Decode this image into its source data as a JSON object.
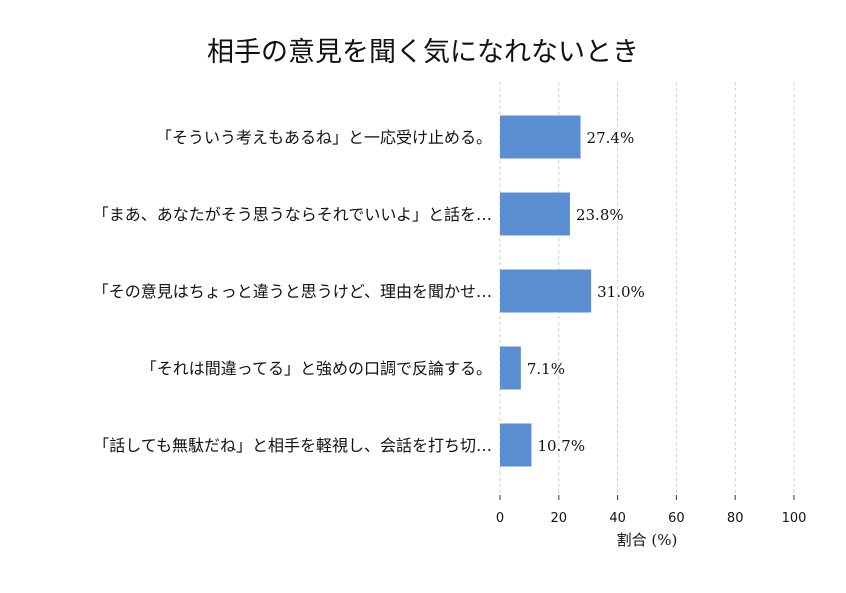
{
  "chart_data": {
    "type": "bar",
    "orientation": "horizontal",
    "title": "相手の意見を聞く気になれないとき",
    "xlabel": "割合 (%)",
    "ylabel": "",
    "xlim": [
      0,
      100
    ],
    "xticks": [
      0,
      20,
      40,
      60,
      80,
      100
    ],
    "grid": true,
    "bar_color": "#5b8fd1",
    "categories": [
      "「そういう考えもあるね」と一応受け止める。",
      "「まあ、あなたがそう思うならそれでいいよ」と話を…",
      "「その意見はちょっと違うと思うけど、理由を聞かせ…",
      "「それは間違ってる」と強めの口調で反論する。",
      "「話しても無駄だね」と相手を軽視し、会話を打ち切…"
    ],
    "values": [
      27.4,
      23.8,
      31.0,
      7.1,
      10.7
    ],
    "value_labels": [
      "27.4%",
      "23.8%",
      "31.0%",
      "7.1%",
      "10.7%"
    ]
  }
}
